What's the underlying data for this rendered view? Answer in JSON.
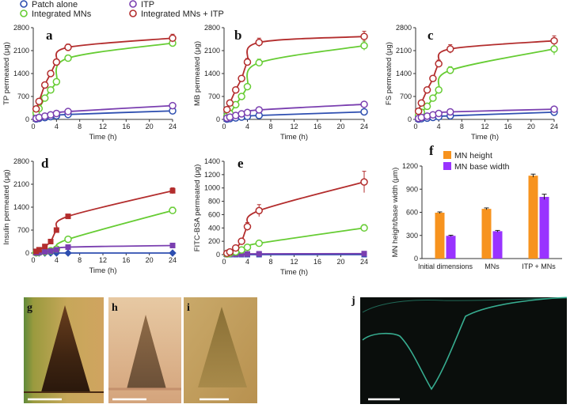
{
  "legend": {
    "items": [
      {
        "label": "Patch alone",
        "color": "#2e4fb0"
      },
      {
        "label": "Integrated MNs",
        "color": "#66cc33"
      },
      {
        "label": "ITP",
        "color": "#7a3fb0"
      },
      {
        "label": "Integrated MNs + ITP",
        "color": "#b32d2d"
      }
    ]
  },
  "chart_data": [
    {
      "type": "line",
      "panel": "a",
      "ylabel": "TP permeated (μg)",
      "xlabel": "Time (h)",
      "ylim": [
        0,
        2800
      ],
      "yticks": [
        0,
        700,
        1400,
        2100,
        2800
      ],
      "xlim": [
        0,
        24
      ],
      "xticks": [
        0,
        4,
        8,
        12,
        16,
        20,
        24
      ],
      "x": [
        0.5,
        1,
        2,
        3,
        4,
        6,
        24
      ],
      "series": [
        {
          "name": "Patch alone",
          "values": [
            15,
            30,
            55,
            85,
            110,
            150,
            260
          ],
          "err": [
            8,
            10,
            12,
            15,
            18,
            20,
            30
          ],
          "color": "#2e4fb0",
          "marker": "circle"
        },
        {
          "name": "Integrated MNs",
          "values": [
            200,
            330,
            650,
            900,
            1150,
            1870,
            2330
          ],
          "err": [
            30,
            40,
            60,
            70,
            80,
            90,
            110
          ],
          "color": "#66cc33",
          "marker": "circle"
        },
        {
          "name": "ITP",
          "values": [
            30,
            60,
            100,
            140,
            180,
            240,
            420
          ],
          "err": [
            10,
            12,
            15,
            18,
            20,
            25,
            35
          ],
          "color": "#7a3fb0",
          "marker": "circle"
        },
        {
          "name": "Integrated MNs + ITP",
          "values": [
            320,
            550,
            1050,
            1400,
            1750,
            2200,
            2480
          ],
          "err": [
            40,
            50,
            70,
            80,
            90,
            100,
            120
          ],
          "color": "#b32d2d",
          "marker": "circle"
        }
      ]
    },
    {
      "type": "line",
      "panel": "b",
      "ylabel": "MB permeated (μg)",
      "xlabel": "Time (h)",
      "ylim": [
        0,
        2800
      ],
      "yticks": [
        0,
        700,
        1400,
        2100,
        2800
      ],
      "xlim": [
        0,
        24
      ],
      "xticks": [
        0,
        4,
        8,
        12,
        16,
        20,
        24
      ],
      "x": [
        0.5,
        1,
        2,
        3,
        4,
        6,
        24
      ],
      "series": [
        {
          "name": "Patch alone",
          "values": [
            10,
            25,
            45,
            70,
            90,
            120,
            230
          ],
          "err": [
            8,
            10,
            12,
            14,
            16,
            18,
            25
          ],
          "color": "#2e4fb0",
          "marker": "circle"
        },
        {
          "name": "Integrated MNs",
          "values": [
            100,
            180,
            450,
            700,
            1000,
            1730,
            2250
          ],
          "err": [
            20,
            30,
            50,
            60,
            80,
            110,
            140
          ],
          "color": "#66cc33",
          "marker": "circle"
        },
        {
          "name": "ITP",
          "values": [
            40,
            70,
            120,
            170,
            210,
            290,
            460
          ],
          "err": [
            10,
            12,
            15,
            18,
            20,
            25,
            35
          ],
          "color": "#7a3fb0",
          "marker": "circle"
        },
        {
          "name": "Integrated MNs + ITP",
          "values": [
            300,
            500,
            900,
            1250,
            1750,
            2350,
            2530
          ],
          "err": [
            40,
            50,
            70,
            90,
            110,
            130,
            160
          ],
          "color": "#b32d2d",
          "marker": "circle"
        }
      ]
    },
    {
      "type": "line",
      "panel": "c",
      "ylabel": "FS permeated (μg)",
      "xlabel": "Time (h)",
      "ylim": [
        0,
        2800
      ],
      "yticks": [
        0,
        700,
        1400,
        2100,
        2800
      ],
      "xlim": [
        0,
        24
      ],
      "xticks": [
        0,
        4,
        8,
        12,
        16,
        20,
        24
      ],
      "x": [
        0.5,
        1,
        2,
        3,
        4,
        6,
        24
      ],
      "series": [
        {
          "name": "Patch alone",
          "values": [
            10,
            20,
            40,
            60,
            80,
            110,
            220
          ],
          "err": [
            8,
            10,
            12,
            14,
            16,
            18,
            25
          ],
          "color": "#2e4fb0",
          "marker": "circle"
        },
        {
          "name": "Integrated MNs",
          "values": [
            120,
            220,
            400,
            650,
            900,
            1500,
            2150
          ],
          "err": [
            25,
            35,
            50,
            60,
            80,
            110,
            180
          ],
          "color": "#66cc33",
          "marker": "circle"
        },
        {
          "name": "ITP",
          "values": [
            30,
            60,
            100,
            140,
            180,
            230,
            310
          ],
          "err": [
            10,
            12,
            15,
            18,
            20,
            25,
            30
          ],
          "color": "#7a3fb0",
          "marker": "circle"
        },
        {
          "name": "Integrated MNs + ITP",
          "values": [
            250,
            500,
            900,
            1250,
            1700,
            2150,
            2400
          ],
          "err": [
            40,
            50,
            70,
            90,
            110,
            130,
            150
          ],
          "color": "#b32d2d",
          "marker": "circle"
        }
      ]
    },
    {
      "type": "line",
      "panel": "d",
      "ylabel": "Insulin permeated (μg)",
      "xlabel": "Time (h)",
      "ylim": [
        0,
        2800
      ],
      "yticks": [
        0,
        700,
        1400,
        2100,
        2800
      ],
      "xlim": [
        0,
        24
      ],
      "xticks": [
        0,
        4,
        8,
        12,
        16,
        20,
        24
      ],
      "x": [
        0.5,
        1,
        2,
        3,
        4,
        6,
        24
      ],
      "series": [
        {
          "name": "Patch alone",
          "values": [
            0,
            0,
            0,
            0,
            0,
            0,
            0
          ],
          "err": [
            3,
            3,
            3,
            3,
            3,
            3,
            5
          ],
          "color": "#2e4fb0",
          "marker": "diamond"
        },
        {
          "name": "Integrated MNs",
          "values": [
            10,
            20,
            40,
            70,
            120,
            420,
            1300
          ],
          "err": [
            5,
            8,
            10,
            15,
            20,
            40,
            100
          ],
          "color": "#66cc33",
          "marker": "circle"
        },
        {
          "name": "ITP",
          "values": [
            5,
            15,
            35,
            60,
            100,
            180,
            230
          ],
          "err": [
            5,
            6,
            8,
            10,
            12,
            15,
            25
          ],
          "color": "#7a3fb0",
          "marker": "square"
        },
        {
          "name": "Integrated MNs + ITP",
          "values": [
            50,
            100,
            200,
            350,
            700,
            1120,
            1900
          ],
          "err": [
            10,
            15,
            20,
            30,
            45,
            60,
            90
          ],
          "color": "#b32d2d",
          "marker": "square"
        }
      ]
    },
    {
      "type": "line",
      "panel": "e",
      "ylabel": "FITC-BSA permeated (μg)",
      "xlabel": "Time (h)",
      "ylim": [
        0,
        1400
      ],
      "yticks": [
        0,
        200,
        400,
        600,
        800,
        1000,
        1200,
        1400
      ],
      "xlim": [
        0,
        24
      ],
      "xticks": [
        0,
        4,
        8,
        12,
        16,
        20,
        24
      ],
      "x": [
        0.5,
        1,
        2,
        3,
        4,
        6,
        24
      ],
      "series": [
        {
          "name": "Patch alone",
          "values": [
            0,
            0,
            0,
            0,
            0,
            0,
            0
          ],
          "err": [
            2,
            2,
            2,
            2,
            2,
            2,
            5
          ],
          "color": "#2e4fb0",
          "marker": "square"
        },
        {
          "name": "ITP",
          "values": [
            2,
            4,
            6,
            8,
            10,
            12,
            15
          ],
          "err": [
            2,
            2,
            3,
            3,
            3,
            4,
            5
          ],
          "color": "#7a3fb0",
          "marker": "square"
        },
        {
          "name": "Integrated MNs",
          "values": [
            10,
            20,
            40,
            70,
            110,
            170,
            400
          ],
          "err": [
            5,
            8,
            10,
            15,
            20,
            30,
            50
          ],
          "color": "#66cc33",
          "marker": "circle"
        },
        {
          "name": "Integrated MNs + ITP",
          "values": [
            20,
            40,
            100,
            200,
            420,
            660,
            1090
          ],
          "err": [
            10,
            15,
            25,
            40,
            60,
            90,
            160
          ],
          "color": "#b32d2d",
          "marker": "circle"
        }
      ]
    },
    {
      "type": "bar",
      "panel": "f",
      "ylabel": "MN height/base width (μm)",
      "ylim": [
        0,
        1200
      ],
      "yticks": [
        0,
        300,
        600,
        900,
        1200
      ],
      "categories": [
        "Initial dimensions",
        "MNs",
        "ITP + MNs"
      ],
      "series": [
        {
          "name": "MN height",
          "values": [
            595,
            645,
            1075
          ],
          "err": [
            10,
            12,
            20
          ],
          "color": "#f7931e"
        },
        {
          "name": "MN base width",
          "values": [
            295,
            355,
            800
          ],
          "err": [
            8,
            10,
            35
          ],
          "color": "#9933ff"
        }
      ]
    }
  ],
  "images": [
    {
      "label": "g"
    },
    {
      "label": "h"
    },
    {
      "label": "i"
    },
    {
      "label": "j"
    }
  ]
}
